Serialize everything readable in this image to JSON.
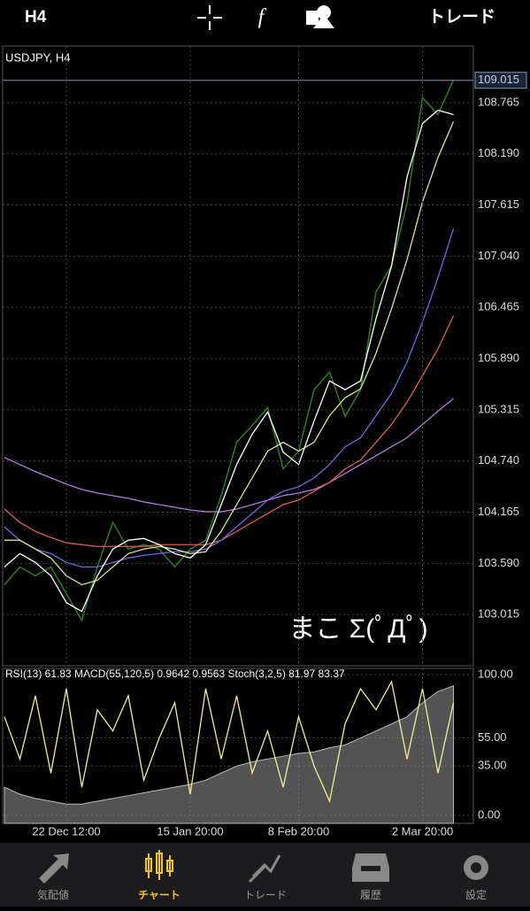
{
  "top_bar": {
    "timeframe": "H4",
    "trade": "トレード"
  },
  "chart_data": [
    {
      "type": "line",
      "title": "USDJPY, H4",
      "annotation": "まこ Σ(ﾟДﾟ)",
      "current_price": 109.015,
      "ylim": [
        102.44,
        109.4
      ],
      "yticks": [
        108.765,
        {
          "value": 108.19,
          "label": "108.190"
        },
        107.615,
        {
          "value": 107.04,
          "label": "107.040"
        },
        106.465,
        {
          "value": 105.89,
          "label": "105.890"
        },
        105.315,
        {
          "value": 104.74,
          "label": "104.740"
        },
        104.165,
        {
          "value": 103.59,
          "label": "103.590"
        },
        103.015
      ],
      "grid": true,
      "series": [
        {
          "color": "#2e7d1e",
          "values": [
            103.35,
            103.55,
            103.45,
            103.55,
            103.25,
            102.95,
            103.55,
            104.05,
            103.75,
            103.8,
            103.75,
            103.55,
            103.75,
            103.85,
            104.35,
            104.95,
            105.14,
            105.34,
            104.65,
            104.85,
            105.54,
            105.74,
            105.24,
            105.54,
            106.64,
            106.93,
            107.63,
            108.82,
            108.63,
            109.02
          ]
        },
        {
          "color": "#b57ae8",
          "values": [
            104.78,
            104.7,
            104.62,
            104.55,
            104.48,
            104.42,
            104.38,
            104.35,
            104.32,
            104.28,
            104.25,
            104.22,
            104.19,
            104.17,
            104.17,
            104.2,
            104.25,
            104.3,
            104.35,
            104.38,
            104.42,
            104.5,
            104.6,
            104.7,
            104.8,
            104.9,
            105.0,
            105.15,
            105.3,
            105.44
          ]
        },
        {
          "color": "#e0604a",
          "values": [
            104.2,
            104.05,
            103.95,
            103.88,
            103.82,
            103.8,
            103.78,
            103.78,
            103.78,
            103.78,
            103.8,
            103.8,
            103.8,
            103.8,
            103.85,
            103.95,
            104.05,
            104.15,
            104.25,
            104.3,
            104.4,
            104.5,
            104.65,
            104.75,
            104.95,
            105.15,
            105.4,
            105.7,
            106.0,
            106.37
          ]
        },
        {
          "color": "#6a6ae6",
          "values": [
            104.0,
            103.85,
            103.75,
            103.7,
            103.6,
            103.55,
            103.55,
            103.6,
            103.65,
            103.68,
            103.7,
            103.72,
            103.72,
            103.75,
            103.85,
            104.0,
            104.15,
            104.3,
            104.4,
            104.45,
            104.55,
            104.7,
            104.9,
            105.0,
            105.25,
            105.5,
            105.85,
            106.3,
            106.8,
            107.35
          ]
        },
        {
          "color": "#d8e88a",
          "values": [
            103.85,
            103.85,
            103.75,
            103.65,
            103.45,
            103.35,
            103.4,
            103.55,
            103.7,
            103.75,
            103.78,
            103.75,
            103.7,
            103.72,
            103.95,
            104.25,
            104.55,
            104.85,
            104.95,
            104.85,
            104.95,
            105.25,
            105.45,
            105.55,
            105.95,
            106.45,
            107.0,
            107.65,
            108.15,
            108.55
          ]
        },
        {
          "color": "#ffffff",
          "values": [
            103.55,
            103.7,
            103.6,
            103.45,
            103.15,
            103.05,
            103.45,
            103.75,
            103.85,
            103.87,
            103.8,
            103.7,
            103.65,
            103.8,
            104.25,
            104.7,
            105.04,
            105.29,
            104.84,
            104.7,
            105.19,
            105.64,
            105.54,
            105.64,
            106.34,
            106.93,
            107.93,
            108.53,
            108.68,
            108.63
          ]
        }
      ]
    },
    {
      "type": "line",
      "title": "RSI(13) 61.83 MACD(55,120,5) 0.9642 0.9563 Stoch(3,2,5) 81.97 83.37",
      "ylim": [
        -5.7,
        104.4
      ],
      "yticks": [
        {
          "value": 100,
          "label": "100.00"
        },
        {
          "value": 55,
          "label": "55.00"
        },
        {
          "value": 35,
          "label": "35.00"
        },
        {
          "value": 0,
          "label": "0.00"
        }
      ],
      "grid": true,
      "categories": [
        null,
        null,
        null,
        null,
        "22 Dec 12:00",
        null,
        null,
        null,
        null,
        null,
        null,
        null,
        "15 Jan 20:00",
        null,
        null,
        null,
        null,
        null,
        null,
        "8 Feb 20:00",
        null,
        null,
        null,
        null,
        null,
        null,
        null,
        "2 Mar 20:00",
        null,
        null
      ],
      "series": [
        {
          "color": "#8a8a8a",
          "area": true,
          "values": [
            20,
            15,
            12,
            10,
            8,
            8,
            10,
            12,
            14,
            16,
            18,
            20,
            22,
            25,
            30,
            35,
            38,
            40,
            42,
            44,
            45,
            48,
            50,
            55,
            60,
            65,
            70,
            80,
            88,
            92
          ]
        },
        {
          "color": "#f0f08a",
          "values": [
            70,
            40,
            85,
            30,
            90,
            20,
            75,
            60,
            85,
            25,
            55,
            80,
            15,
            90,
            40,
            85,
            30,
            60,
            20,
            70,
            35,
            10,
            65,
            90,
            75,
            95,
            40,
            90,
            30,
            80
          ]
        }
      ]
    }
  ],
  "tabs": [
    "気配値",
    "チャート",
    "トレード",
    "履歴",
    "設定"
  ]
}
